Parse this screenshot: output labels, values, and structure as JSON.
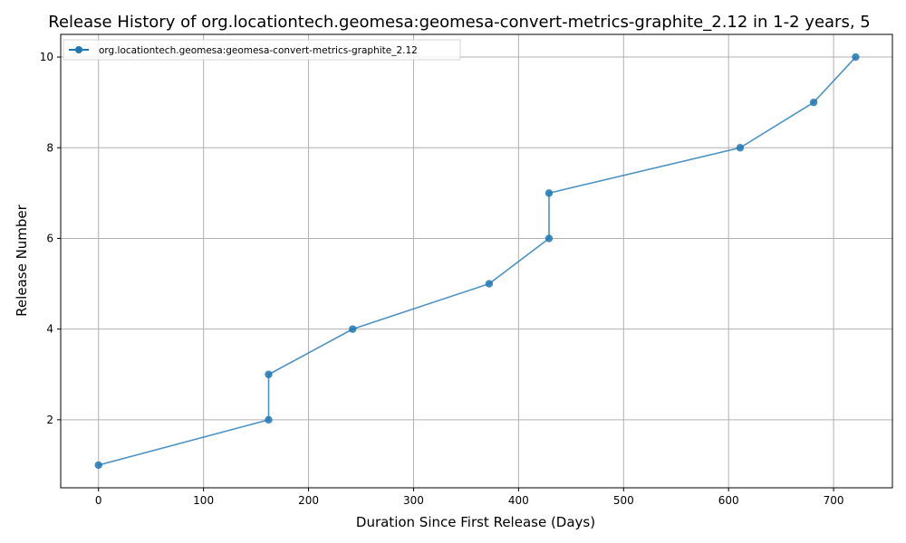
{
  "chart_data": {
    "type": "line",
    "title": "Release History of org.locationtech.geomesa:geomesa-convert-metrics-graphite_2.12 in 1-2 years, 5",
    "xlabel": "Duration Since First Release (Days)",
    "ylabel": "Release Number",
    "xlim": [
      -36,
      756
    ],
    "ylim": [
      0.5,
      10.5
    ],
    "xticks": [
      0,
      100,
      200,
      300,
      400,
      500,
      600,
      700
    ],
    "yticks": [
      2,
      4,
      6,
      8,
      10
    ],
    "grid": true,
    "legend_position": "top-left",
    "series": [
      {
        "name": "org.locationtech.geomesa:geomesa-convert-metrics-graphite_2.12",
        "color": "#1f77b4",
        "marker": "circle",
        "x": [
          0,
          162,
          162,
          242,
          372,
          429,
          429,
          611,
          681,
          721
        ],
        "y": [
          1,
          2,
          3,
          4,
          5,
          6,
          7,
          8,
          9,
          10
        ]
      }
    ]
  }
}
